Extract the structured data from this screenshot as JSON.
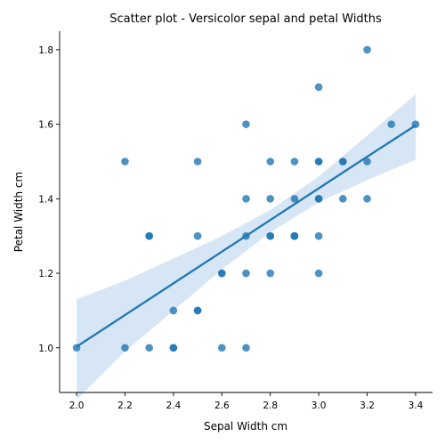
{
  "chart_data": {
    "type": "scatter",
    "title": "Scatter plot - Versicolor sepal and petal Widths",
    "xlabel": "Sepal Width cm",
    "ylabel": "Petal Width cm",
    "xlim": [
      1.93,
      3.47
    ],
    "ylim": [
      0.88,
      1.85
    ],
    "xticks": [
      "2.0",
      "2.2",
      "2.4",
      "2.6",
      "2.8",
      "3.0",
      "3.2",
      "3.4"
    ],
    "yticks": [
      "1.0",
      "1.2",
      "1.4",
      "1.6",
      "1.8"
    ],
    "grid": false,
    "legend": "none",
    "colors": {
      "points": "#1f77b4",
      "line": "#1f77b4",
      "band": "#bcd6ee"
    },
    "points": [
      [
        2.0,
        1.0
      ],
      [
        2.2,
        1.0
      ],
      [
        2.2,
        1.5
      ],
      [
        2.3,
        1.0
      ],
      [
        2.3,
        1.3
      ],
      [
        2.3,
        1.3
      ],
      [
        2.4,
        1.0
      ],
      [
        2.4,
        1.0
      ],
      [
        2.4,
        1.1
      ],
      [
        2.5,
        1.1
      ],
      [
        2.5,
        1.1
      ],
      [
        2.5,
        1.3
      ],
      [
        2.5,
        1.5
      ],
      [
        2.6,
        1.0
      ],
      [
        2.6,
        1.2
      ],
      [
        2.6,
        1.2
      ],
      [
        2.7,
        1.0
      ],
      [
        2.7,
        1.2
      ],
      [
        2.7,
        1.3
      ],
      [
        2.7,
        1.4
      ],
      [
        2.7,
        1.6
      ],
      [
        2.8,
        1.2
      ],
      [
        2.8,
        1.3
      ],
      [
        2.8,
        1.3
      ],
      [
        2.8,
        1.4
      ],
      [
        2.8,
        1.5
      ],
      [
        2.9,
        1.3
      ],
      [
        2.9,
        1.3
      ],
      [
        2.9,
        1.3
      ],
      [
        2.9,
        1.4
      ],
      [
        2.9,
        1.5
      ],
      [
        3.0,
        1.2
      ],
      [
        3.0,
        1.3
      ],
      [
        3.0,
        1.4
      ],
      [
        3.0,
        1.4
      ],
      [
        3.0,
        1.5
      ],
      [
        3.0,
        1.5
      ],
      [
        3.0,
        1.7
      ],
      [
        3.1,
        1.4
      ],
      [
        3.1,
        1.5
      ],
      [
        3.1,
        1.5
      ],
      [
        3.2,
        1.4
      ],
      [
        3.2,
        1.5
      ],
      [
        3.2,
        1.8
      ],
      [
        3.3,
        1.6
      ],
      [
        3.4,
        1.6
      ]
    ],
    "regression": {
      "x": [
        2.0,
        2.2,
        2.4,
        2.6,
        2.8,
        3.0,
        3.2,
        3.4
      ],
      "fit": [
        1.003,
        1.088,
        1.173,
        1.258,
        1.343,
        1.428,
        1.513,
        1.597
      ],
      "ci_low": [
        0.86,
        0.99,
        1.1,
        1.21,
        1.31,
        1.39,
        1.45,
        1.505
      ],
      "ci_high": [
        1.13,
        1.18,
        1.24,
        1.3,
        1.37,
        1.46,
        1.57,
        1.68
      ]
    }
  }
}
